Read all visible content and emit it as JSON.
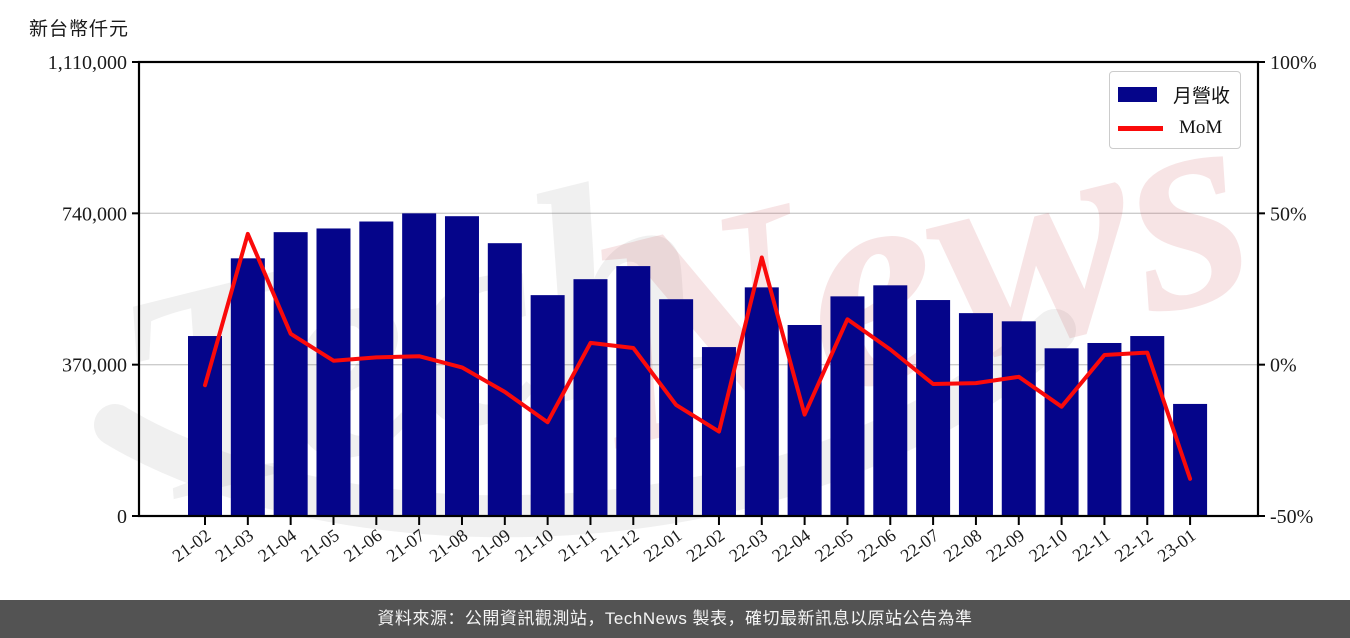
{
  "header": {
    "unit_label": "新台幣仟元"
  },
  "legend": {
    "items": [
      {
        "label": "月營收"
      },
      {
        "label": "MoM"
      }
    ]
  },
  "watermark": {
    "text_left": "Tech",
    "text_right": "News"
  },
  "footer": {
    "text": "資料來源：公開資訊觀測站，TechNews 製表，確切最新訊息以原站公告為準"
  },
  "colors": {
    "bar": "#05058a",
    "line": "#fa0a0a",
    "grid": "#cccccc",
    "axis": "#000000",
    "tick_text": "#1a1a1a",
    "footer_bg": "#535353",
    "footer_text": "#f5f5f5",
    "watermark_gray": "rgba(70,70,70,0.08)",
    "watermark_pink": "rgba(205,85,95,0.16)"
  },
  "chart_data": {
    "type": "bar",
    "title": "",
    "categories": [
      "21-02",
      "21-03",
      "21-04",
      "21-05",
      "21-06",
      "21-07",
      "21-08",
      "21-09",
      "21-10",
      "21-11",
      "21-12",
      "22-01",
      "22-02",
      "22-03",
      "22-04",
      "22-05",
      "22-06",
      "22-07",
      "22-08",
      "22-09",
      "22-10",
      "22-11",
      "22-12",
      "23-01"
    ],
    "series": [
      {
        "name": "月營收",
        "type": "bar",
        "axis": "left",
        "unit": "新台幣仟元",
        "values": [
          440000,
          630000,
          694000,
          703000,
          720000,
          740000,
          733000,
          667000,
          540000,
          579000,
          611000,
          530000,
          413000,
          559000,
          467000,
          537000,
          564000,
          528000,
          496000,
          476000,
          410000,
          423000,
          440000,
          274000
        ]
      },
      {
        "name": "MoM",
        "type": "line",
        "axis": "right",
        "unit": "%",
        "values": [
          -6.8,
          43.2,
          10.2,
          1.3,
          2.4,
          2.8,
          -0.9,
          -9.0,
          -19.0,
          7.2,
          5.5,
          -13.3,
          -22.1,
          35.4,
          -16.5,
          15.0,
          5.0,
          -6.4,
          -6.1,
          -4.0,
          -13.9,
          3.2,
          4.0,
          -37.7
        ]
      }
    ],
    "left_axis": {
      "title": "新台幣仟元",
      "range": [
        0,
        1110000
      ],
      "ticks": [
        0,
        370000,
        740000,
        1110000
      ],
      "tick_labels": [
        "0",
        "370,000",
        "740,000",
        "1,110,000"
      ]
    },
    "right_axis": {
      "range": [
        -50,
        100
      ],
      "ticks": [
        -50,
        0,
        50,
        100
      ],
      "tick_labels": [
        "-50%",
        "0%",
        "50%",
        "100%"
      ]
    },
    "grid": "horizontal",
    "legend_position": "top-right",
    "x_tick_rotation_deg": -36
  }
}
